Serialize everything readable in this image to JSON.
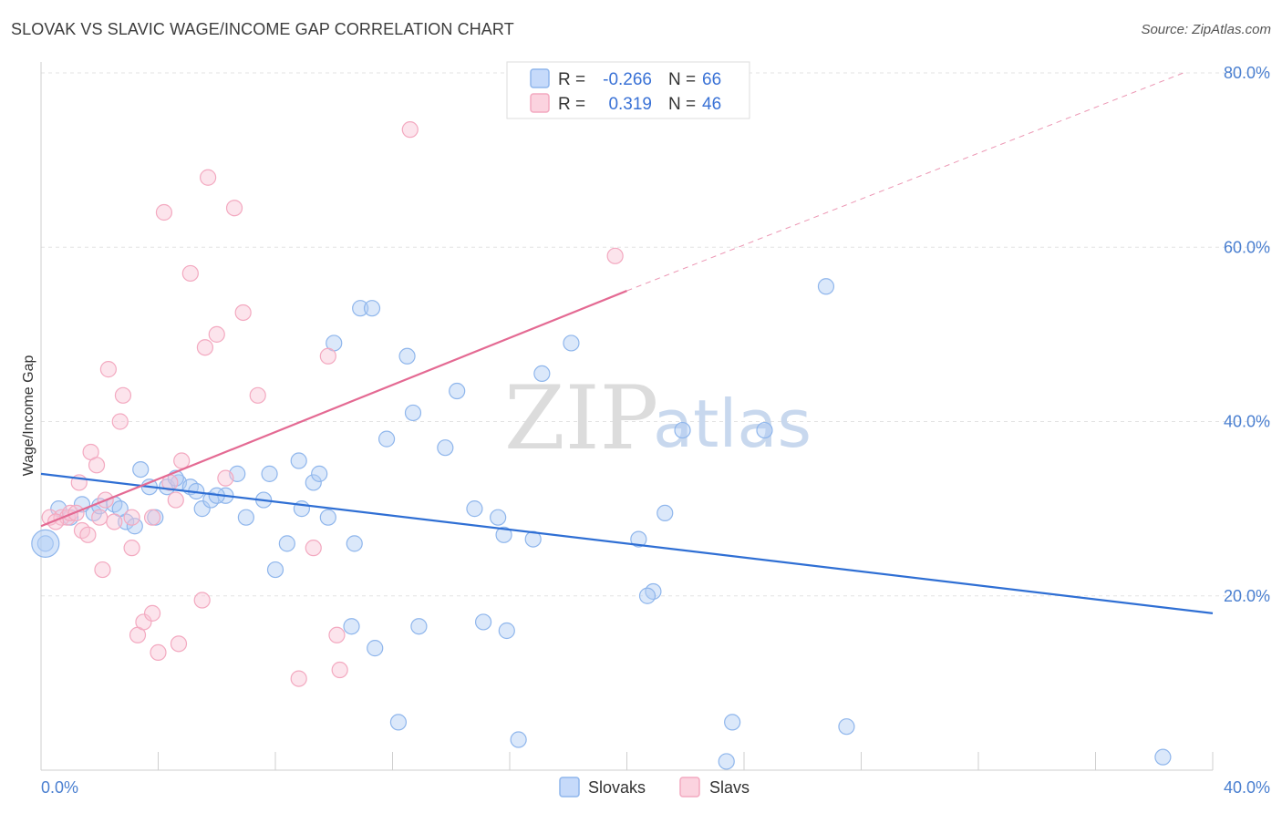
{
  "title": "SLOVAK VS SLAVIC WAGE/INCOME GAP CORRELATION CHART",
  "source": "Source: ZipAtlas.com",
  "watermark": {
    "zip": "ZIP",
    "atlas": "atlas"
  },
  "legend": {
    "r_label": "R =",
    "n_label": "N =",
    "rows": [
      {
        "r": "-0.266",
        "n": "66",
        "color": "#8fb6ec"
      },
      {
        "r": "0.319",
        "n": "46",
        "color": "#f3a9c0"
      }
    ]
  },
  "chart_data": {
    "type": "scatter",
    "title": "SLOVAK VS SLAVIC WAGE/INCOME GAP CORRELATION CHART",
    "xlabel": "",
    "ylabel": "Wage/Income Gap",
    "xlim": [
      0,
      40
    ],
    "ylim": [
      0,
      80
    ],
    "x_tick_labels": [
      "0.0%",
      "40.0%"
    ],
    "y_ticks": [
      20,
      40,
      60,
      80
    ],
    "y_tick_labels": [
      "20.0%",
      "40.0%",
      "60.0%",
      "80.0%"
    ],
    "grid": true,
    "legend_position": "top-center",
    "series": [
      {
        "name": "Slovaks",
        "color": "#8fb6ec",
        "line_color": "#2f6fd4",
        "trend": {
          "x0": 0,
          "y0": 34.0,
          "x1": 40,
          "y1": 18.0
        },
        "points": [
          [
            0.15,
            26.0
          ],
          [
            0.6,
            30.0
          ],
          [
            1.8,
            29.5
          ],
          [
            1.4,
            30.5
          ],
          [
            2.0,
            30.3
          ],
          [
            2.5,
            30.5
          ],
          [
            2.9,
            28.5
          ],
          [
            3.2,
            28.0
          ],
          [
            3.4,
            34.5
          ],
          [
            3.9,
            29.0
          ],
          [
            3.7,
            32.5
          ],
          [
            4.3,
            32.5
          ],
          [
            4.7,
            33.0
          ],
          [
            5.1,
            32.5
          ],
          [
            5.5,
            30.0
          ],
          [
            5.8,
            31.0
          ],
          [
            6.3,
            31.5
          ],
          [
            6.0,
            31.5
          ],
          [
            6.7,
            34.0
          ],
          [
            7.0,
            29.0
          ],
          [
            7.6,
            31.0
          ],
          [
            8.0,
            23.0
          ],
          [
            7.8,
            34.0
          ],
          [
            8.4,
            26.0
          ],
          [
            8.8,
            35.5
          ],
          [
            8.9,
            30.0
          ],
          [
            9.3,
            33.0
          ],
          [
            9.5,
            34.0
          ],
          [
            9.8,
            29.0
          ],
          [
            10.0,
            49.0
          ],
          [
            10.6,
            16.5
          ],
          [
            10.7,
            26.0
          ],
          [
            10.9,
            53.0
          ],
          [
            11.3,
            53.0
          ],
          [
            11.4,
            14.0
          ],
          [
            11.8,
            38.0
          ],
          [
            12.2,
            5.5
          ],
          [
            12.5,
            47.5
          ],
          [
            12.7,
            41.0
          ],
          [
            12.9,
            16.5
          ],
          [
            13.8,
            37.0
          ],
          [
            14.2,
            43.5
          ],
          [
            14.8,
            30.0
          ],
          [
            15.1,
            17.0
          ],
          [
            15.6,
            29.0
          ],
          [
            15.8,
            27.0
          ],
          [
            15.9,
            16.0
          ],
          [
            16.3,
            3.5
          ],
          [
            16.8,
            26.5
          ],
          [
            17.1,
            45.5
          ],
          [
            18.1,
            49.0
          ],
          [
            20.4,
            26.5
          ],
          [
            20.9,
            20.5
          ],
          [
            20.7,
            20.0
          ],
          [
            21.3,
            29.5
          ],
          [
            21.9,
            39.0
          ],
          [
            23.4,
            1.0
          ],
          [
            23.6,
            5.5
          ],
          [
            24.7,
            39.0
          ],
          [
            26.8,
            55.5
          ],
          [
            27.5,
            5.0
          ],
          [
            38.3,
            1.5
          ],
          [
            1.0,
            29.0
          ],
          [
            2.7,
            30.0
          ],
          [
            4.6,
            33.5
          ],
          [
            5.3,
            32.0
          ]
        ]
      },
      {
        "name": "Slavs",
        "color": "#f3a9c0",
        "line_color": "#e46a93",
        "trend": {
          "x0": 0,
          "y0": 28.0,
          "x1": 20,
          "y1": 55.0,
          "dashed_to": {
            "x": 39.0,
            "y": 80.0
          }
        },
        "points": [
          [
            0.3,
            29.0
          ],
          [
            0.7,
            29.0
          ],
          [
            0.9,
            29.0
          ],
          [
            1.0,
            29.5
          ],
          [
            1.2,
            29.5
          ],
          [
            1.3,
            33.0
          ],
          [
            1.4,
            27.5
          ],
          [
            1.6,
            27.0
          ],
          [
            1.7,
            36.5
          ],
          [
            1.9,
            35.0
          ],
          [
            2.1,
            23.0
          ],
          [
            2.2,
            31.0
          ],
          [
            2.3,
            46.0
          ],
          [
            2.5,
            28.5
          ],
          [
            2.7,
            40.0
          ],
          [
            2.8,
            43.0
          ],
          [
            3.1,
            25.5
          ],
          [
            3.1,
            29.0
          ],
          [
            3.3,
            15.5
          ],
          [
            3.5,
            17.0
          ],
          [
            3.8,
            29.0
          ],
          [
            3.8,
            18.0
          ],
          [
            4.0,
            13.5
          ],
          [
            4.2,
            64.0
          ],
          [
            4.4,
            33.0
          ],
          [
            4.6,
            31.0
          ],
          [
            4.7,
            14.5
          ],
          [
            4.8,
            35.5
          ],
          [
            5.1,
            57.0
          ],
          [
            5.5,
            19.5
          ],
          [
            5.6,
            48.5
          ],
          [
            5.7,
            68.0
          ],
          [
            6.0,
            50.0
          ],
          [
            6.3,
            33.5
          ],
          [
            6.6,
            64.5
          ],
          [
            6.9,
            52.5
          ],
          [
            7.4,
            43.0
          ],
          [
            8.8,
            10.5
          ],
          [
            9.3,
            25.5
          ],
          [
            9.8,
            47.5
          ],
          [
            10.1,
            15.5
          ],
          [
            10.2,
            11.5
          ],
          [
            12.6,
            73.5
          ],
          [
            19.6,
            59.0
          ],
          [
            0.5,
            28.5
          ],
          [
            2.0,
            29.0
          ]
        ]
      }
    ]
  }
}
